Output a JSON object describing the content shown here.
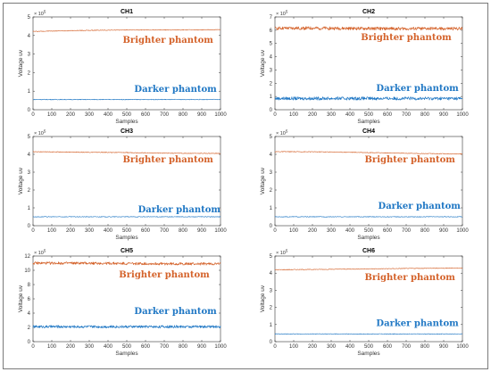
{
  "colors": {
    "bright": "#d4622a",
    "dark": "#1f77c4",
    "axis": "#333333"
  },
  "chart_data": [
    {
      "type": "line",
      "title": "CH1",
      "xlabel": "Samples",
      "ylabel": "Voltage uv",
      "xlim": [
        0,
        1000
      ],
      "ylim": [
        0,
        5
      ],
      "yticks": [
        0,
        1,
        2,
        3,
        4,
        5
      ],
      "xticks": [
        0,
        100,
        200,
        300,
        400,
        500,
        600,
        700,
        800,
        900,
        1000
      ],
      "y_exponent": "× 10",
      "y_exponent_power": "5",
      "noise": 0.02,
      "series": [
        {
          "name": "Brighter phantom",
          "color": "#d4622a",
          "x": [
            0,
            250,
            500,
            750,
            1000
          ],
          "y": [
            4.22,
            4.27,
            4.3,
            4.3,
            4.31
          ]
        },
        {
          "name": "Darker phantom",
          "color": "#1f77c4",
          "x": [
            0,
            250,
            500,
            750,
            1000
          ],
          "y": [
            0.55,
            0.55,
            0.55,
            0.55,
            0.55
          ]
        }
      ],
      "annotations": [
        {
          "text": "Brighter phantom",
          "x": 720,
          "y": 3.6,
          "color": "#d4622a"
        },
        {
          "text": "Darker phantom",
          "x": 760,
          "y": 0.95,
          "color": "#1f77c4"
        }
      ]
    },
    {
      "type": "line",
      "title": "CH2",
      "xlabel": "Samples",
      "ylabel": "Voltage uv",
      "xlim": [
        0,
        1000
      ],
      "ylim": [
        0,
        7
      ],
      "yticks": [
        0,
        1,
        2,
        3,
        4,
        5,
        6,
        7
      ],
      "xticks": [
        0,
        100,
        200,
        300,
        400,
        500,
        600,
        700,
        800,
        900,
        1000
      ],
      "y_exponent": "× 10",
      "y_exponent_power": "5",
      "noise": 0.12,
      "series": [
        {
          "name": "Brighter phantom",
          "color": "#d4622a",
          "x": [
            0,
            250,
            500,
            750,
            1000
          ],
          "y": [
            6.15,
            6.15,
            6.12,
            6.12,
            6.12
          ]
        },
        {
          "name": "Darker phantom",
          "color": "#1f77c4",
          "x": [
            0,
            250,
            500,
            750,
            1000
          ],
          "y": [
            0.85,
            0.85,
            0.85,
            0.85,
            0.85
          ]
        }
      ],
      "annotations": [
        {
          "text": "Brighter phantom",
          "x": 700,
          "y": 5.25,
          "color": "#d4622a"
        },
        {
          "text": "Darker phantom",
          "x": 760,
          "y": 1.4,
          "color": "#1f77c4"
        }
      ]
    },
    {
      "type": "line",
      "title": "CH3",
      "xlabel": "Samples",
      "ylabel": "Voltage uv",
      "xlim": [
        0,
        1000
      ],
      "ylim": [
        0,
        5
      ],
      "yticks": [
        0,
        1,
        2,
        3,
        4,
        5
      ],
      "xticks": [
        0,
        100,
        200,
        300,
        400,
        500,
        600,
        700,
        800,
        900,
        1000
      ],
      "y_exponent": "× 10",
      "y_exponent_power": "5",
      "noise": 0.02,
      "series": [
        {
          "name": "Brighter phantom",
          "color": "#d4622a",
          "x": [
            0,
            250,
            500,
            750,
            1000
          ],
          "y": [
            4.15,
            4.12,
            4.1,
            4.06,
            4.05
          ]
        },
        {
          "name": "Darker phantom",
          "color": "#1f77c4",
          "x": [
            0,
            250,
            500,
            750,
            1000
          ],
          "y": [
            0.5,
            0.5,
            0.5,
            0.5,
            0.5
          ]
        }
      ],
      "annotations": [
        {
          "text": "Brighter phantom",
          "x": 720,
          "y": 3.55,
          "color": "#d4622a"
        },
        {
          "text": "Darker phantom",
          "x": 780,
          "y": 0.75,
          "color": "#1f77c4"
        }
      ]
    },
    {
      "type": "line",
      "title": "CH4",
      "xlabel": "Samples",
      "ylabel": "Voltage uv",
      "xlim": [
        0,
        1000
      ],
      "ylim": [
        0,
        5
      ],
      "yticks": [
        0,
        1,
        2,
        3,
        4,
        5
      ],
      "xticks": [
        0,
        100,
        200,
        300,
        400,
        500,
        600,
        700,
        800,
        900,
        1000
      ],
      "y_exponent": "× 10",
      "y_exponent_power": "5",
      "noise": 0.02,
      "series": [
        {
          "name": "Brighter phantom",
          "color": "#d4622a",
          "x": [
            0,
            250,
            500,
            750,
            1000
          ],
          "y": [
            4.15,
            4.14,
            4.1,
            4.05,
            4.02
          ]
        },
        {
          "name": "Darker phantom",
          "color": "#1f77c4",
          "x": [
            0,
            250,
            500,
            750,
            1000
          ],
          "y": [
            0.5,
            0.5,
            0.5,
            0.5,
            0.5
          ]
        }
      ],
      "annotations": [
        {
          "text": "Brighter phantom",
          "x": 720,
          "y": 3.55,
          "color": "#d4622a"
        },
        {
          "text": "Darker phantom",
          "x": 770,
          "y": 0.95,
          "color": "#1f77c4"
        }
      ]
    },
    {
      "type": "line",
      "title": "CH5",
      "xlabel": "Samples",
      "ylabel": "Voltage uv",
      "xlim": [
        0,
        1000
      ],
      "ylim": [
        0,
        12
      ],
      "yticks": [
        0,
        2,
        4,
        6,
        8,
        10,
        12
      ],
      "xticks": [
        0,
        100,
        200,
        300,
        400,
        500,
        600,
        700,
        800,
        900,
        1000
      ],
      "y_exponent": "× 10",
      "y_exponent_power": "5",
      "noise": 0.18,
      "series": [
        {
          "name": "Brighter phantom",
          "color": "#d4622a",
          "x": [
            0,
            250,
            500,
            750,
            1000
          ],
          "y": [
            11.0,
            11.0,
            10.95,
            10.9,
            10.9
          ]
        },
        {
          "name": "Darker phantom",
          "color": "#1f77c4",
          "x": [
            0,
            250,
            500,
            750,
            1000
          ],
          "y": [
            2.1,
            2.1,
            2.1,
            2.1,
            2.1
          ]
        }
      ],
      "annotations": [
        {
          "text": "Brighter phantom",
          "x": 700,
          "y": 9.0,
          "color": "#d4622a"
        },
        {
          "text": "Darker phantom",
          "x": 760,
          "y": 3.9,
          "color": "#1f77c4"
        }
      ]
    },
    {
      "type": "line",
      "title": "CH6",
      "xlabel": "Samples",
      "ylabel": "Voltage uv",
      "xlim": [
        0,
        1000
      ],
      "ylim": [
        0,
        5
      ],
      "yticks": [
        0,
        1,
        2,
        3,
        4,
        5
      ],
      "xticks": [
        0,
        100,
        200,
        300,
        400,
        500,
        600,
        700,
        800,
        900,
        1000
      ],
      "y_exponent": "× 10",
      "y_exponent_power": "5",
      "noise": 0.02,
      "series": [
        {
          "name": "Brighter phantom",
          "color": "#d4622a",
          "x": [
            0,
            250,
            500,
            750,
            1000
          ],
          "y": [
            4.2,
            4.22,
            4.25,
            4.28,
            4.3
          ]
        },
        {
          "name": "Darker phantom",
          "color": "#1f77c4",
          "x": [
            0,
            250,
            500,
            750,
            1000
          ],
          "y": [
            0.45,
            0.45,
            0.45,
            0.45,
            0.45
          ]
        }
      ],
      "annotations": [
        {
          "text": "Brighter phantom",
          "x": 720,
          "y": 3.6,
          "color": "#d4622a"
        },
        {
          "text": "Darker phantom",
          "x": 760,
          "y": 0.9,
          "color": "#1f77c4"
        }
      ]
    }
  ]
}
